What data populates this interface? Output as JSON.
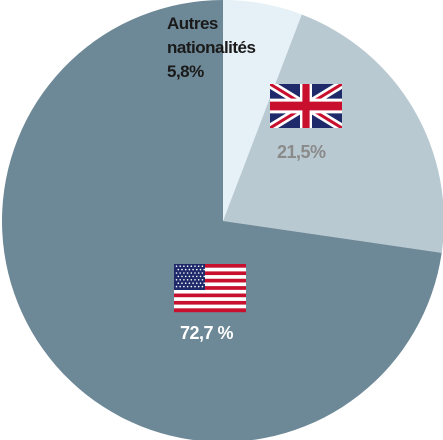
{
  "chart_data": {
    "type": "pie",
    "slices": [
      {
        "label": "Autres nationalités",
        "value": 5.8,
        "value_label": "5,8%",
        "color": "#e5f1f6",
        "icon": ""
      },
      {
        "label": "",
        "value": 21.5,
        "value_label": "21,5%",
        "color": "#b9c9d1",
        "icon": "uk-flag-icon"
      },
      {
        "label": "",
        "value": 72.7,
        "value_label": "72,7 %",
        "color": "#6d8896",
        "icon": "us-flag-icon"
      }
    ],
    "start_angle_deg": 0,
    "direction": "clockwise-from-top",
    "legend": "none"
  },
  "labels": {
    "other_line1": "Autres",
    "other_line2": "nationalités",
    "other_value": "5,8%",
    "uk_value": "21,5%",
    "us_value": "72,7 %"
  },
  "colors": {
    "flag_red": "#c8102e",
    "flag_blue": "#1f2a6b",
    "flag_white": "#ffffff"
  }
}
